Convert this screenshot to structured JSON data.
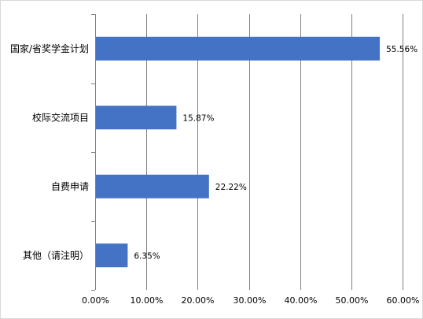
{
  "chart_data": {
    "type": "bar",
    "orientation": "horizontal",
    "categories": [
      "国家/省奖学金计划",
      "校际交流项目",
      "自费申请",
      "其他（请注明）"
    ],
    "values": [
      55.56,
      15.87,
      22.22,
      6.35
    ],
    "data_labels": [
      "55.56%",
      "15.87%",
      "22.22%",
      "6.35%"
    ],
    "x_ticks": [
      "0.00%",
      "10.00%",
      "20.00%",
      "30.00%",
      "40.00%",
      "50.00%",
      "60.00%"
    ],
    "xlim": [
      0,
      60
    ],
    "title": "",
    "xlabel": "",
    "ylabel": "",
    "grid": "vertical",
    "legend": "none",
    "colors": {
      "bar": "#4472C4",
      "grid": "#808080",
      "frame": "#d9d9d9"
    }
  }
}
